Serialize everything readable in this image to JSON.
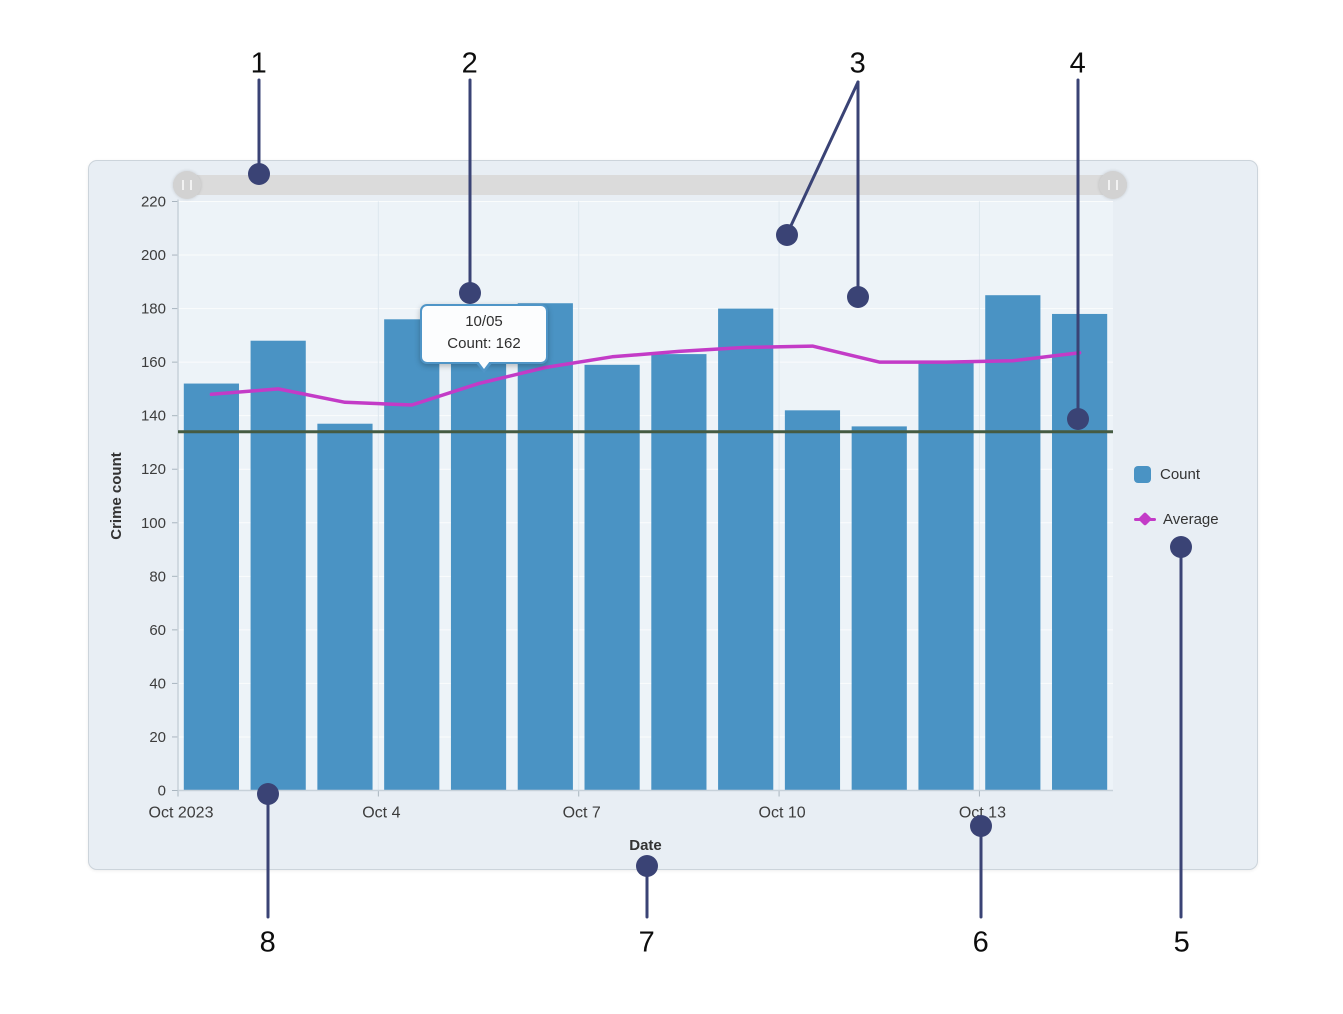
{
  "scrollbar": {
    "name": "horizontal scroll zoom slider",
    "left_handle_icon": "grip-icon",
    "right_handle_icon": "grip-icon"
  },
  "tooltip": {
    "title": "10/05",
    "text": "Count: 162"
  },
  "legend": {
    "items": [
      {
        "label": "Count",
        "marker": "square",
        "color": "#4a93c4"
      },
      {
        "label": "Average",
        "marker": "line-diamond",
        "color": "#c33bc7"
      }
    ]
  },
  "annotations": [
    "1",
    "2",
    "3",
    "4",
    "5",
    "6",
    "7",
    "8"
  ],
  "colors": {
    "bar": "#4a93c4",
    "average_line": "#c33bc7",
    "guide_line": "#455b42",
    "callout": "#3a4375",
    "scrollbar_track": "#dbdbdb"
  },
  "chart_data": {
    "type": "bar",
    "title": "",
    "categories": [
      "10/01",
      "10/02",
      "10/03",
      "10/04",
      "10/05",
      "10/06",
      "10/07",
      "10/08",
      "10/09",
      "10/10",
      "10/11",
      "10/12",
      "10/13",
      "10/14"
    ],
    "series": [
      {
        "name": "Count",
        "type": "bar",
        "color": "#4a93c4",
        "values": [
          152,
          168,
          137,
          176,
          162,
          182,
          159,
          163,
          180,
          142,
          136,
          160,
          185,
          178
        ]
      },
      {
        "name": "Average",
        "type": "line",
        "color": "#c33bc7",
        "values": [
          148,
          150,
          145,
          144,
          152,
          158,
          162,
          164,
          165.5,
          166,
          160,
          160,
          160.5,
          163.5
        ]
      }
    ],
    "guide_line": {
      "value": 134,
      "color": "#455b42"
    },
    "xlabel": "Date",
    "ylabel": "Crime count",
    "ylim": [
      0,
      220
    ],
    "ytick_interval": 20,
    "xticks": [
      {
        "at": 0,
        "label": "Oct 2023"
      },
      {
        "at": 3,
        "label": "Oct 4"
      },
      {
        "at": 6,
        "label": "Oct 7"
      },
      {
        "at": 9,
        "label": "Oct 10"
      },
      {
        "at": 12,
        "label": "Oct 13"
      }
    ],
    "grid": true,
    "legend_position": "right"
  }
}
